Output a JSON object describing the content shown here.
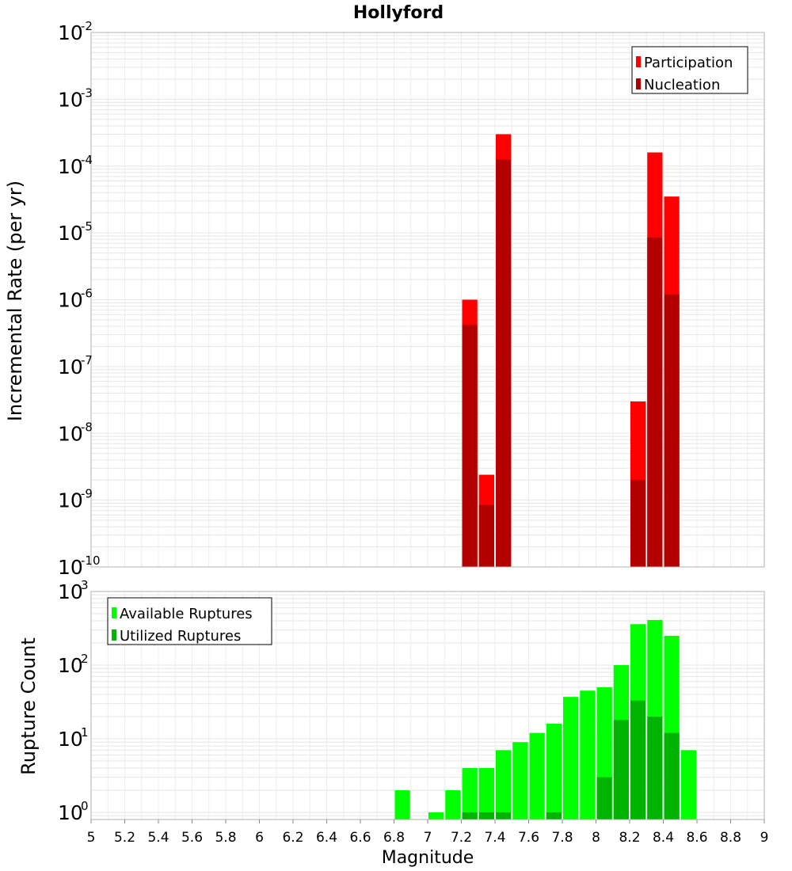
{
  "chart_data": [
    {
      "type": "bar",
      "title": "Hollyford",
      "ylabel": "Incremental Rate (per yr)",
      "yscale": "log",
      "ylim": [
        1e-10,
        0.01
      ],
      "xlim": [
        5,
        9
      ],
      "ytick_exponents": [
        "-2",
        "-3",
        "-4",
        "-5",
        "-6",
        "-7",
        "-8",
        "-9",
        "-10"
      ],
      "legend_position": "top-right",
      "series": [
        {
          "name": "Participation",
          "color": "#ff0000",
          "x": [
            7.25,
            7.35,
            7.45,
            8.25,
            8.35,
            8.45
          ],
          "values": [
            1e-06,
            2.4e-09,
            0.0003,
            3e-08,
            0.00016,
            3.5e-05
          ]
        },
        {
          "name": "Nucleation",
          "color": "#b30000",
          "x": [
            7.25,
            7.35,
            7.45,
            8.25,
            8.35,
            8.45
          ],
          "values": [
            4.2e-07,
            8.5e-10,
            0.000125,
            2e-09,
            8.5e-06,
            1.2e-06
          ]
        }
      ]
    },
    {
      "type": "bar",
      "xlabel": "Magnitude",
      "ylabel": "Rupture Count",
      "yscale": "log",
      "ylim": [
        0.8,
        1000
      ],
      "xlim": [
        5,
        9
      ],
      "ytick_exponents": [
        "3",
        "2",
        "1",
        "0"
      ],
      "xticks": [
        "5",
        "5.2",
        "5.4",
        "5.6",
        "5.8",
        "6",
        "6.2",
        "6.4",
        "6.6",
        "6.8",
        "7",
        "7.2",
        "7.4",
        "7.6",
        "7.8",
        "8",
        "8.2",
        "8.4",
        "8.6",
        "8.8",
        "9"
      ],
      "legend_position": "top-left",
      "series": [
        {
          "name": "Available Ruptures",
          "color": "#00ff00",
          "x": [
            6.85,
            7.05,
            7.15,
            7.25,
            7.35,
            7.45,
            7.55,
            7.65,
            7.75,
            7.85,
            7.95,
            8.05,
            8.15,
            8.25,
            8.35,
            8.45,
            8.55
          ],
          "values": [
            2,
            1,
            2,
            4,
            4,
            7,
            9,
            12,
            16,
            37,
            45,
            50,
            100,
            360,
            410,
            250,
            7
          ]
        },
        {
          "name": "Utilized Ruptures",
          "color": "#00b300",
          "x": [
            7.25,
            7.35,
            7.45,
            7.75,
            8.05,
            8.15,
            8.25,
            8.35,
            8.45
          ],
          "values": [
            1,
            1,
            1,
            1,
            3,
            18,
            33,
            20,
            12
          ]
        }
      ]
    }
  ]
}
